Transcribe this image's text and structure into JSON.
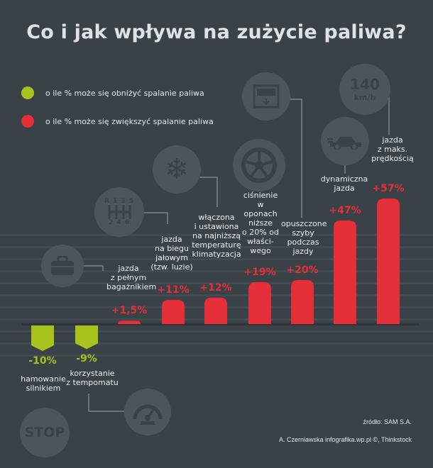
{
  "header": {
    "title": "Co i jak wpływa na zużycie paliwa?"
  },
  "legend": [
    {
      "label": "o ile % może się obniżyć spalanie paliwa",
      "color": "#a8c21e"
    },
    {
      "label": "o ile % może się zwiększyć spalanie paliwa",
      "color": "#e5303a"
    }
  ],
  "icons": {
    "speed_text": "140",
    "speed_unit": "km/h",
    "stop_text": "STOP",
    "gear_top": "R 1 3 5",
    "gear_bottom": "2 4 6"
  },
  "chart_data": {
    "type": "bar",
    "title": "Co i jak wpływa na zużycie paliwa?",
    "categories": [
      "hamowanie silnikiem",
      "korzystanie z tempomatu",
      "jazda z pełnym bagażnikiem",
      "jazda na biegu jałowym (tzw. luzie)",
      "włączona i ustawiona na najniższą temperaturę klimatyzacja",
      "ciśnienie w oponach niższe o 20% od właściwego",
      "opuszczone szyby podczas jazdy",
      "dynamiczna jazda",
      "jazda z maks. prędkością"
    ],
    "values": [
      -10,
      -9,
      1.5,
      11,
      12,
      19,
      20,
      47,
      57
    ],
    "value_labels": [
      "-10%",
      "-9%",
      "+1,5%",
      "+11%",
      "+12%",
      "+19%",
      "+20%",
      "+47%",
      "+57%"
    ],
    "colors": {
      "decrease": "#a8c21e",
      "increase": "#e5303a"
    },
    "ylim": [
      -10,
      57
    ]
  },
  "source": {
    "line1": "źródło: SAM S.A.",
    "line2": "A. Czerniawska infografika.wp.pl ©, Thinkstock"
  }
}
